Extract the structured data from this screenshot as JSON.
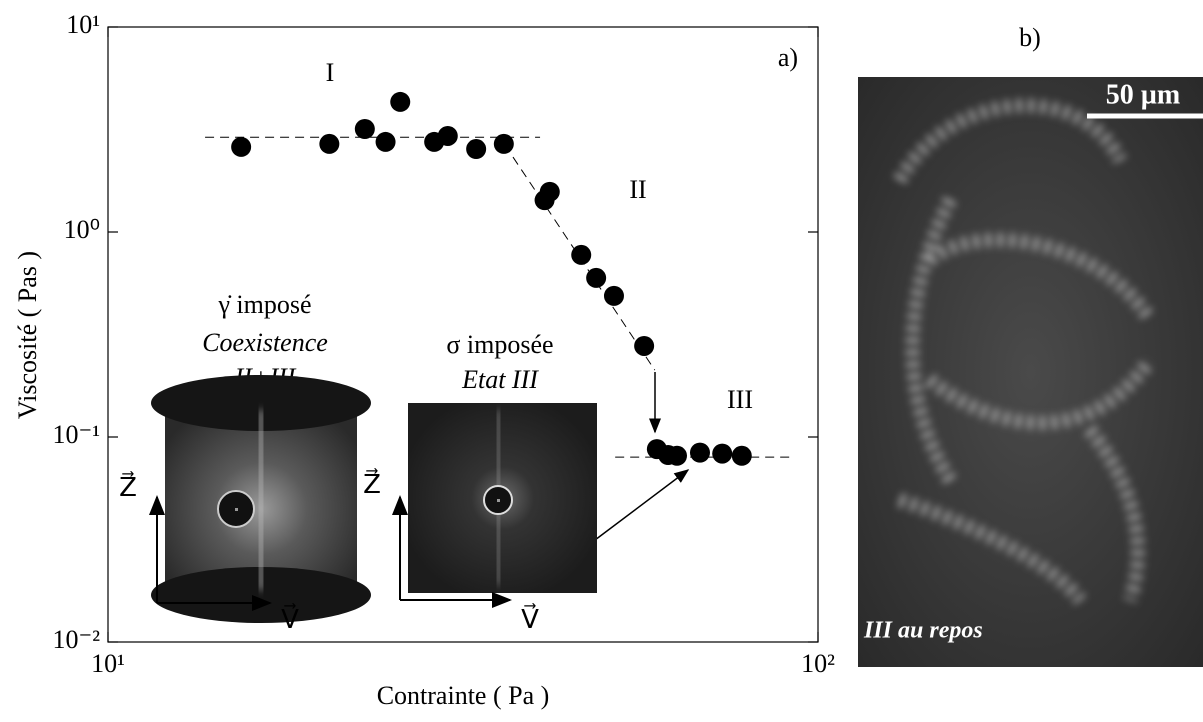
{
  "chart_data": {
    "type": "scatter",
    "x_label": "Contrainte ( Pa )",
    "y_label": "Viscosité ( Pas )",
    "panel_label": "a)",
    "x": [
      15.4,
      20.5,
      23.0,
      24.6,
      25.8,
      28.8,
      30.1,
      33.0,
      36.1,
      41.2,
      41.9,
      46.4,
      48.7,
      51.6,
      56.9,
      59.3,
      61.5,
      63.3,
      68.2,
      73.3,
      78.1
    ],
    "values": [
      2.6,
      2.69,
      3.18,
      2.75,
      4.31,
      2.75,
      2.94,
      2.54,
      2.69,
      1.43,
      1.57,
      0.773,
      0.597,
      0.488,
      0.278,
      0.0873,
      0.0817,
      0.081,
      0.0839,
      0.083,
      0.081
    ],
    "color": "#000000",
    "log_x": true,
    "log_y": true,
    "xlim": [
      10,
      100
    ],
    "ylim": [
      0.01,
      10
    ],
    "xticks": [
      {
        "value": 10,
        "label": "10¹"
      },
      {
        "value": 100,
        "label": "10²"
      }
    ],
    "yticks": [
      {
        "value": 0.01,
        "label": "10⁻²"
      },
      {
        "value": 0.1,
        "label": "10⁻¹"
      },
      {
        "value": 1,
        "label": "10⁰"
      },
      {
        "value": 10,
        "label": "10¹"
      }
    ],
    "guides": [
      {
        "x": [
          13.7,
          40.6
        ],
        "y": [
          2.9,
          2.9
        ]
      },
      {
        "x": [
          36.2,
          58.9
        ],
        "y": [
          2.67,
          0.212
        ]
      },
      {
        "x": [
          51.8,
          91.3
        ],
        "y": [
          0.0798,
          0.0798
        ]
      }
    ],
    "regions": [
      "I",
      "II",
      "III"
    ],
    "insets": [
      {
        "title": "γ̇ imposé",
        "subtitle": "Coexistence",
        "state": "II+III",
        "z": "Z⃗",
        "v": "V⃗"
      },
      {
        "title": "σ  imposée",
        "state": "Etat III",
        "z": "Z⃗",
        "v": "V⃗"
      }
    ]
  },
  "image_panel": {
    "label": "b)",
    "scale_bar": "50 µm",
    "caption": "III au repos"
  }
}
